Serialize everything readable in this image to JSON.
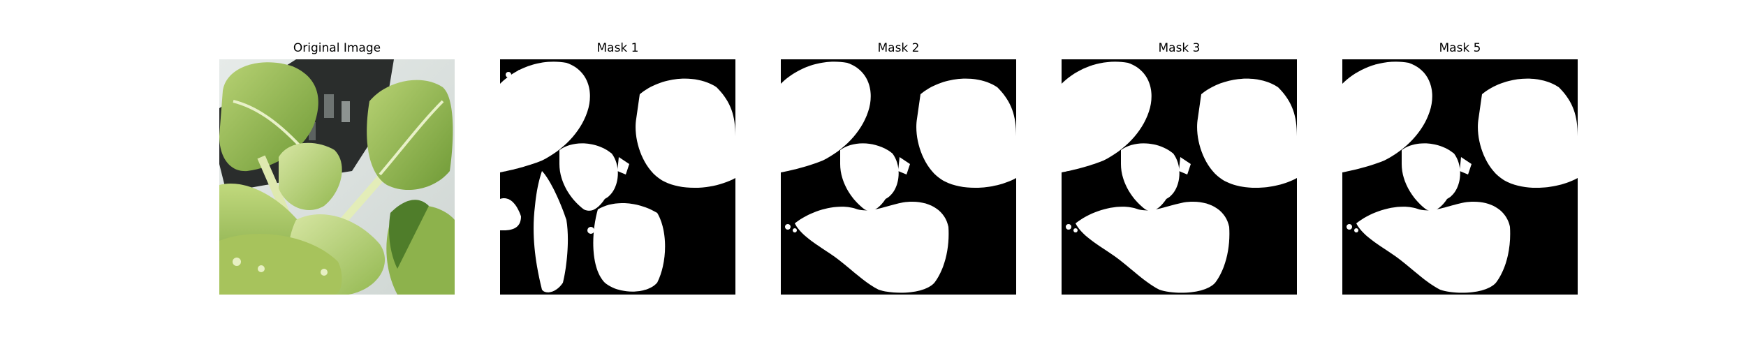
{
  "figure": {
    "panels": [
      {
        "title": "Original Image",
        "kind": "photo"
      },
      {
        "title": "Mask 1",
        "kind": "mask"
      },
      {
        "title": "Mask 2",
        "kind": "mask"
      },
      {
        "title": "Mask 3",
        "kind": "mask"
      },
      {
        "title": "Mask 5",
        "kind": "mask"
      }
    ]
  },
  "colors": {
    "background": "#ffffff",
    "mask_foreground": "#ffffff",
    "mask_background": "#000000",
    "leaf_light": "#c9dd8a",
    "leaf_mid": "#9fc05c",
    "leaf_dark": "#5f8a2e",
    "tray_dark": "#2a2d2c"
  }
}
